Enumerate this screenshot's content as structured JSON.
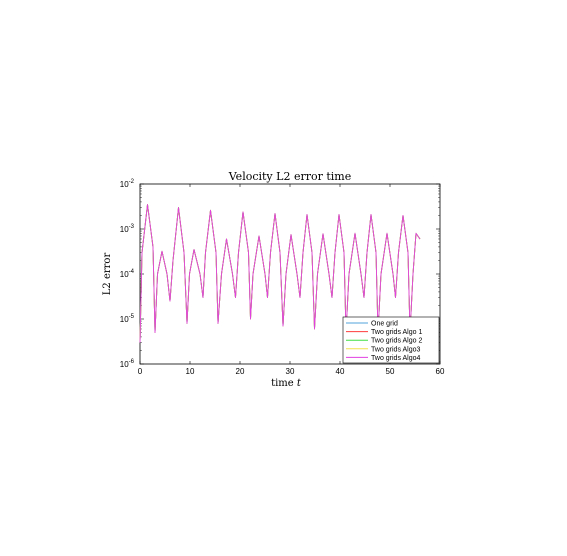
{
  "chart_data": {
    "type": "line",
    "title": "Velocity L2 error time",
    "xlabel": "time t",
    "ylabel": "L2 error",
    "xlim": [
      0,
      60
    ],
    "ylim": [
      1e-06,
      0.01
    ],
    "yscale": "log",
    "x_ticks": [
      "0",
      "10",
      "20",
      "30",
      "40",
      "50",
      "60"
    ],
    "y_ticks": [
      {
        "value": 1e-06,
        "base": "10",
        "exp": "-6"
      },
      {
        "value": 1e-05,
        "base": "10",
        "exp": "-5"
      },
      {
        "value": 0.0001,
        "base": "10",
        "exp": "-4"
      },
      {
        "value": 0.001,
        "base": "10",
        "exp": "-3"
      },
      {
        "value": 0.01,
        "base": "10",
        "exp": "-2"
      }
    ],
    "grid": false,
    "legend_position": "bottom-right",
    "series": [
      {
        "name": "One grid",
        "color": "#4fa3d9"
      },
      {
        "name": "Two grids Algo 1",
        "color": "#ff3b3b"
      },
      {
        "name": "Two grids Algo 2",
        "color": "#44dd44"
      },
      {
        "name": "Two grids Algo3",
        "color": "#f4e04d"
      },
      {
        "name": "Two grids Algo4",
        "color": "#e040e0"
      }
    ],
    "curve_points": [
      [
        0,
        3e-06
      ],
      [
        0.4,
        0.0003
      ],
      [
        1.5,
        0.0035
      ],
      [
        2.6,
        0.0004
      ],
      [
        3.0,
        5e-06
      ],
      [
        3.5,
        0.0001
      ],
      [
        4.4,
        0.00032
      ],
      [
        5.4,
        0.0001
      ],
      [
        6.0,
        2.5e-05
      ],
      [
        6.6,
        0.0002
      ],
      [
        7.7,
        0.003
      ],
      [
        8.8,
        0.0003
      ],
      [
        9.4,
        8e-06
      ],
      [
        9.9,
        0.0001
      ],
      [
        10.8,
        0.00035
      ],
      [
        12.0,
        0.0001
      ],
      [
        12.6,
        3e-05
      ],
      [
        13.1,
        0.0003
      ],
      [
        14.1,
        0.0026
      ],
      [
        15.2,
        0.0003
      ],
      [
        15.6,
        8e-06
      ],
      [
        16.3,
        0.0001
      ],
      [
        17.3,
        0.0006
      ],
      [
        18.5,
        0.0001
      ],
      [
        19.1,
        3e-05
      ],
      [
        19.7,
        0.0003
      ],
      [
        20.6,
        0.0024
      ],
      [
        21.7,
        0.0003
      ],
      [
        22.1,
        1e-05
      ],
      [
        22.6,
        0.0001
      ],
      [
        23.8,
        0.0007
      ],
      [
        25.0,
        0.0001
      ],
      [
        25.5,
        3e-05
      ],
      [
        26.1,
        0.0003
      ],
      [
        27.0,
        0.0022
      ],
      [
        28.0,
        0.0003
      ],
      [
        28.6,
        7e-06
      ],
      [
        29.2,
        0.0001
      ],
      [
        30.2,
        0.00075
      ],
      [
        31.4,
        0.0001
      ],
      [
        32.0,
        3e-05
      ],
      [
        32.6,
        0.0003
      ],
      [
        33.4,
        0.0021
      ],
      [
        34.4,
        0.0003
      ],
      [
        34.9,
        6e-06
      ],
      [
        35.5,
        0.0001
      ],
      [
        36.6,
        0.00078
      ],
      [
        37.8,
        0.0001
      ],
      [
        38.4,
        3e-05
      ],
      [
        39.0,
        0.0003
      ],
      [
        39.8,
        0.0021
      ],
      [
        40.8,
        0.0003
      ],
      [
        41.2,
        5e-06
      ],
      [
        41.8,
        0.0001
      ],
      [
        43.0,
        0.0008
      ],
      [
        44.2,
        0.0001
      ],
      [
        44.8,
        3e-05
      ],
      [
        45.4,
        0.0003
      ],
      [
        46.2,
        0.0021
      ],
      [
        47.2,
        0.0003
      ],
      [
        47.6,
        5e-06
      ],
      [
        48.2,
        0.0001
      ],
      [
        49.4,
        0.0008
      ],
      [
        50.6,
        0.0001
      ],
      [
        51.1,
        3e-05
      ],
      [
        51.7,
        0.0003
      ],
      [
        52.6,
        0.002
      ],
      [
        53.6,
        0.0003
      ],
      [
        54.0,
        5e-06
      ],
      [
        54.6,
        0.0001
      ],
      [
        55.2,
        0.0008
      ],
      [
        56.0,
        0.0006
      ]
    ]
  }
}
